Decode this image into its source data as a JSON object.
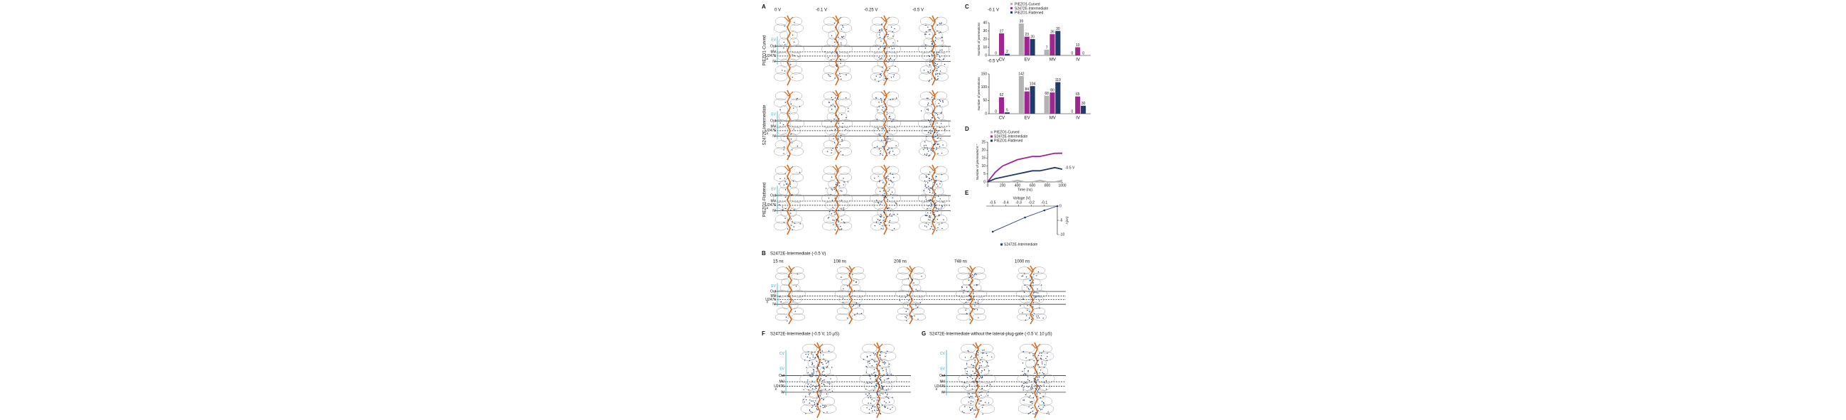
{
  "figure": {
    "panel_labels": [
      "A",
      "B",
      "C",
      "D",
      "E",
      "F",
      "G"
    ],
    "a_voltages": [
      "0 V",
      "-0.1 V",
      "-0.25 V",
      "-0.5 V"
    ],
    "a_rows": [
      "PIEZO1-Curved",
      "S2472E-Intermediate",
      "PIEZO1-Flattened"
    ],
    "region_labels": [
      "CV",
      "EV",
      "Out",
      "MV",
      "U2476",
      "IV",
      "In"
    ],
    "b_title": "S2472E-Intermediate (-0.5 V)",
    "b_times": [
      "15 ns",
      "108 ns",
      "208 ns",
      "748 ns",
      "1000 ns"
    ],
    "f_title": "S2472E-Intermediate (-0.5 V, 10 μS)",
    "g_title": "S2472E-Intermediate without the lateral-plug-gate (-0.5 V, 10 μS)"
  },
  "chart_data": [
    {
      "type": "bar",
      "annotation": "-0.1 V",
      "y_label": "Number of permeations",
      "categories": [
        "CV",
        "EV",
        "MV",
        "IV"
      ],
      "series": [
        {
          "name": "PIEZO1-Curved",
          "color": "#b3b3b3",
          "values": [
            0,
            39,
            7,
            0
          ]
        },
        {
          "name": "S2472E-Intermediate",
          "color": "#a0268f",
          "values": [
            27,
            23,
            26,
            10
          ]
        },
        {
          "name": "PIEZO1-Flattened",
          "color": "#1f3a6b",
          "values": [
            2,
            20,
            30,
            0
          ]
        }
      ],
      "ylim": [
        0,
        40
      ],
      "yticks": [
        0,
        10,
        20,
        30,
        40
      ]
    },
    {
      "type": "bar",
      "annotation": "-0.5 V",
      "y_label": "Number of permeations",
      "categories": [
        "CV",
        "EV",
        "MV",
        "IV"
      ],
      "series": [
        {
          "color": "#b3b3b3",
          "values": [
            0,
            142,
            68,
            0
          ]
        },
        {
          "color": "#a0268f",
          "values": [
            62,
            84,
            80,
            65
          ]
        },
        {
          "color": "#1f3a6b",
          "values": [
            5,
            104,
            119,
            30
          ]
        }
      ],
      "ylim": [
        0,
        150
      ],
      "yticks": [
        0,
        50,
        100,
        150
      ]
    },
    {
      "type": "line",
      "annotation": "-0.5 V",
      "x_label": "Time (ns)",
      "y_label": "Number of permeated K⁺",
      "x": [
        0,
        100,
        200,
        300,
        400,
        500,
        600,
        700,
        800,
        900,
        1000
      ],
      "series": [
        {
          "name": "PIEZO1-Curved",
          "color": "#b3b3b3",
          "values": [
            0,
            0,
            0,
            0,
            1,
            0,
            0,
            1,
            0,
            0,
            1
          ]
        },
        {
          "name": "S2472E-Intermediate",
          "color": "#a0268f",
          "values": [
            0,
            6,
            10,
            12,
            14,
            15,
            16,
            16,
            17,
            18,
            18
          ]
        },
        {
          "name": "PIEZO1-Flattened",
          "color": "#1f3a6b",
          "values": [
            0,
            2,
            3,
            4,
            5,
            6,
            7,
            7,
            8,
            9,
            8
          ]
        }
      ],
      "xlim": [
        0,
        1000
      ],
      "xticks": [
        0,
        200,
        400,
        600,
        800,
        1000
      ],
      "ylim": [
        0,
        25
      ],
      "yticks": [
        0,
        5,
        10,
        15,
        20,
        25
      ]
    },
    {
      "type": "line",
      "x_label": "Voltage (V)",
      "y_label": "I (pA)",
      "x": [
        -0.5,
        -0.25,
        -0.1,
        0
      ],
      "series": [
        {
          "name": "S2472E-Intermediate",
          "color": "#1f3a6b",
          "values": [
            -9,
            -4,
            -1.5,
            0
          ]
        }
      ],
      "xlim": [
        -0.55,
        0
      ],
      "xticks": [
        -0.5,
        -0.4,
        -0.3,
        -0.2,
        -0.1
      ],
      "ylim": [
        -10,
        0
      ],
      "yticks": [
        0,
        -5,
        -10
      ]
    }
  ]
}
